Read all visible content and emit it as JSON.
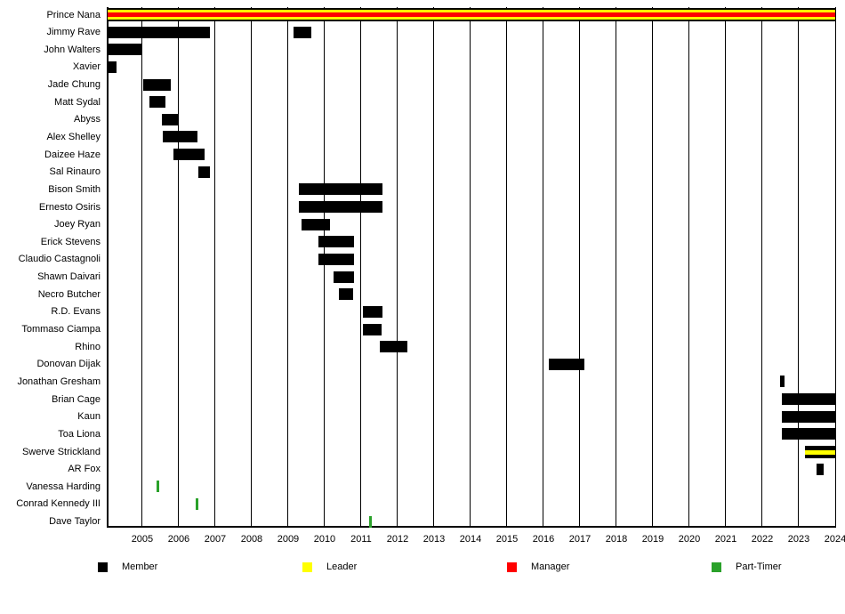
{
  "chart_data": {
    "type": "timeline-gantt",
    "title": "",
    "x_axis": {
      "min": 2004.05,
      "max": 2024.0,
      "ticks": [
        2005,
        2006,
        2007,
        2008,
        2009,
        2010,
        2011,
        2012,
        2013,
        2014,
        2015,
        2016,
        2017,
        2018,
        2019,
        2020,
        2021,
        2022,
        2023,
        2024
      ],
      "grid": true
    },
    "colors": {
      "member": "#000000",
      "leader": "#FFFF00",
      "manager": "#FF0000",
      "part_timer": "#2AA12A"
    },
    "legend": [
      {
        "label": "Member",
        "color": "member"
      },
      {
        "label": "Leader",
        "color": "leader"
      },
      {
        "label": "Manager",
        "color": "manager"
      },
      {
        "label": "Part-Timer",
        "color": "part_timer"
      }
    ],
    "rows": [
      {
        "name": "Prince Nana",
        "bars": [
          {
            "start": 2004.05,
            "end": 2024.0,
            "h": 15,
            "stripes": [
              {
                "color": "member",
                "w": 2
              },
              {
                "color": "leader",
                "w": 3
              },
              {
                "color": "manager",
                "w": 5
              },
              {
                "color": "leader",
                "w": 3
              },
              {
                "color": "member",
                "w": 2
              }
            ]
          }
        ]
      },
      {
        "name": "Jimmy Rave",
        "bars": [
          {
            "start": 2004.05,
            "end": 2006.85
          },
          {
            "start": 2009.15,
            "end": 2009.64
          }
        ]
      },
      {
        "name": "John Walters",
        "bars": [
          {
            "start": 2004.05,
            "end": 2005.01
          }
        ]
      },
      {
        "name": "Xavier",
        "bars": [
          {
            "start": 2004.05,
            "end": 2004.29
          }
        ]
      },
      {
        "name": "Jade Chung",
        "bars": [
          {
            "start": 2005.02,
            "end": 2005.79
          }
        ]
      },
      {
        "name": "Matt Sydal",
        "bars": [
          {
            "start": 2005.2,
            "end": 2005.63
          }
        ]
      },
      {
        "name": "Abyss",
        "bars": [
          {
            "start": 2005.54,
            "end": 2005.99
          }
        ]
      },
      {
        "name": "Alex Shelley",
        "bars": [
          {
            "start": 2005.57,
            "end": 2006.52
          }
        ]
      },
      {
        "name": "Daizee Haze",
        "bars": [
          {
            "start": 2005.86,
            "end": 2006.71
          }
        ]
      },
      {
        "name": "Sal Rinauro",
        "bars": [
          {
            "start": 2006.54,
            "end": 2006.85
          }
        ]
      },
      {
        "name": "Bison Smith",
        "bars": [
          {
            "start": 2009.3,
            "end": 2011.59
          }
        ]
      },
      {
        "name": "Ernesto Osiris",
        "bars": [
          {
            "start": 2009.3,
            "end": 2011.59
          }
        ]
      },
      {
        "name": "Joey Ryan",
        "bars": [
          {
            "start": 2009.36,
            "end": 2010.14
          }
        ]
      },
      {
        "name": "Erick Stevens",
        "bars": [
          {
            "start": 2009.84,
            "end": 2010.8
          }
        ]
      },
      {
        "name": "Claudio Castagnoli",
        "bars": [
          {
            "start": 2009.84,
            "end": 2010.8
          }
        ]
      },
      {
        "name": "Shawn Daivari",
        "bars": [
          {
            "start": 2010.25,
            "end": 2010.8
          }
        ]
      },
      {
        "name": "Necro Butcher",
        "bars": [
          {
            "start": 2010.39,
            "end": 2010.78
          }
        ]
      },
      {
        "name": "R.D. Evans",
        "bars": [
          {
            "start": 2011.06,
            "end": 2011.59
          }
        ]
      },
      {
        "name": "Tommaso Ciampa",
        "bars": [
          {
            "start": 2011.06,
            "end": 2011.57
          }
        ]
      },
      {
        "name": "Rhino",
        "bars": [
          {
            "start": 2011.51,
            "end": 2012.27
          }
        ]
      },
      {
        "name": "Donovan Dijak",
        "bars": [
          {
            "start": 2016.15,
            "end": 2017.12
          }
        ]
      },
      {
        "name": "Jonathan Gresham",
        "bars": [
          {
            "start": 2022.48,
            "end": 2022.6
          }
        ]
      },
      {
        "name": "Brian Cage",
        "bars": [
          {
            "start": 2022.53,
            "end": 2024.0
          }
        ]
      },
      {
        "name": "Kaun",
        "bars": [
          {
            "start": 2022.53,
            "end": 2024.0
          }
        ]
      },
      {
        "name": "Toa Liona",
        "bars": [
          {
            "start": 2022.53,
            "end": 2024.0
          }
        ]
      },
      {
        "name": "Swerve Strickland",
        "bars": [
          {
            "start": 2023.18,
            "end": 2024.0,
            "h": 14,
            "stripes": [
              {
                "color": "member",
                "w": 5
              },
              {
                "color": "leader",
                "w": 5
              },
              {
                "color": "member",
                "w": 4
              }
            ]
          }
        ]
      },
      {
        "name": "AR Fox",
        "bars": [
          {
            "start": 2023.5,
            "end": 2023.68
          }
        ]
      },
      {
        "name": "Vanessa Harding",
        "bars": [
          {
            "start": 2005.4,
            "end": 2005.47,
            "color": "part_timer"
          }
        ]
      },
      {
        "name": "Conrad Kennedy III",
        "bars": [
          {
            "start": 2006.47,
            "end": 2006.54,
            "color": "part_timer"
          }
        ]
      },
      {
        "name": "Dave Taylor",
        "bars": [
          {
            "start": 2011.23,
            "end": 2011.3,
            "color": "part_timer"
          }
        ]
      }
    ]
  }
}
